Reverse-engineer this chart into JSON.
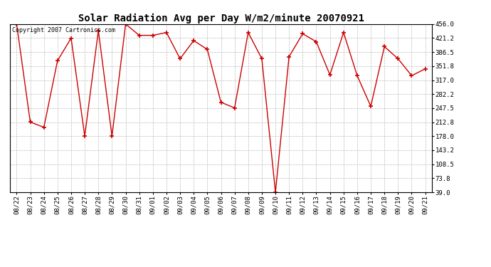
{
  "title": "Solar Radiation Avg per Day W/m2/minute 20070921",
  "copyright_text": "Copyright 2007 Cartronics.com",
  "dates": [
    "08/22",
    "08/23",
    "08/24",
    "08/25",
    "08/26",
    "08/27",
    "08/28",
    "08/29",
    "08/30",
    "08/31",
    "09/01",
    "09/02",
    "09/03",
    "09/04",
    "09/05",
    "09/06",
    "09/07",
    "09/08",
    "09/09",
    "09/10",
    "09/11",
    "09/12",
    "09/13",
    "09/14",
    "09/15",
    "09/16",
    "09/17",
    "09/18",
    "09/19",
    "09/20",
    "09/21"
  ],
  "values": [
    456.0,
    213.0,
    200.0,
    365.0,
    421.0,
    178.0,
    440.0,
    178.0,
    456.0,
    428.0,
    428.0,
    435.0,
    370.0,
    415.0,
    393.0,
    262.0,
    248.0,
    435.0,
    370.0,
    39.0,
    375.0,
    432.0,
    412.0,
    330.0,
    435.0,
    328.0,
    252.0,
    400.0,
    370.0,
    328.0,
    345.0
  ],
  "ylim_min": 39.0,
  "ylim_max": 456.0,
  "yticks": [
    39.0,
    73.8,
    108.5,
    143.2,
    178.0,
    212.8,
    247.5,
    282.2,
    317.0,
    351.8,
    386.5,
    421.2,
    456.0
  ],
  "ytick_labels": [
    "39.0",
    "73.8",
    "108.5",
    "143.2",
    "178.0",
    "212.8",
    "247.5",
    "282.2",
    "317.0",
    "351.8",
    "386.5",
    "421.2",
    "456.0"
  ],
  "line_color": "#cc0000",
  "marker": "+",
  "marker_size": 4,
  "bg_color": "#ffffff",
  "grid_color": "#bbbbbb",
  "title_fontsize": 10,
  "tick_fontsize": 6.5,
  "copyright_fontsize": 6
}
